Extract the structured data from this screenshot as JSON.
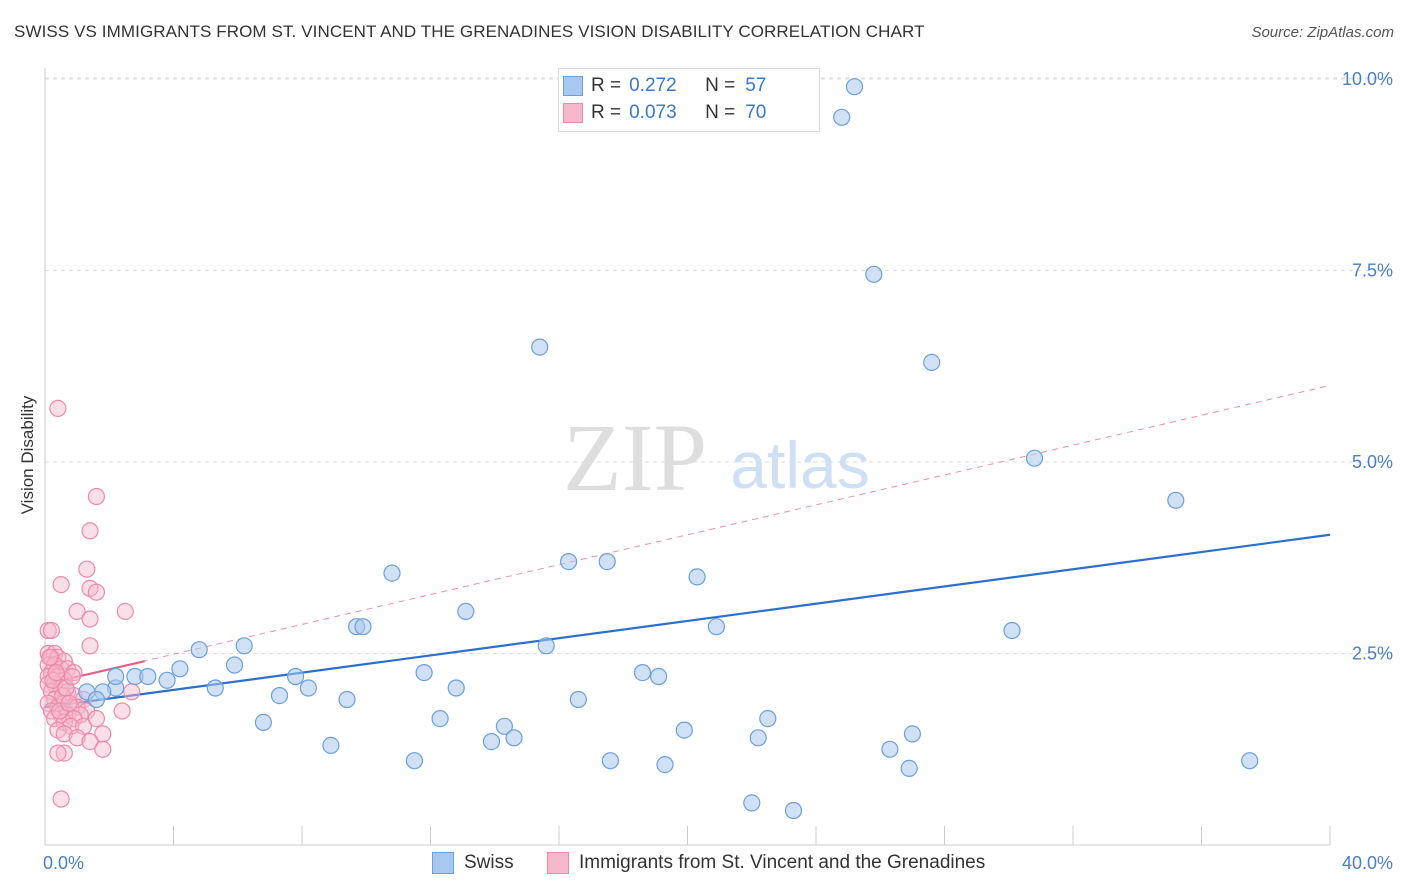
{
  "header": {
    "title": "SWISS VS IMMIGRANTS FROM ST. VINCENT AND THE GRENADINES VISION DISABILITY CORRELATION CHART",
    "source": "Source: ZipAtlas.com"
  },
  "watermark": {
    "zip": "ZIP",
    "atlas": "atlas"
  },
  "legend": {
    "swiss": {
      "r_label": "R =",
      "r_value": "0.272",
      "n_label": "N =",
      "n_value": "57"
    },
    "svg": {
      "r_label": "R =",
      "r_value": "0.073",
      "n_label": "N =",
      "n_value": "70"
    }
  },
  "bottom_legend": {
    "swiss": "Swiss",
    "svg": "Immigrants from St. Vincent and the Grenadines"
  },
  "colors": {
    "swiss_fill": "#a9c8ef",
    "swiss_stroke": "#6c9fdc",
    "swiss_line": "#2c6fcc",
    "svg_fill": "#f7b7cb",
    "svg_stroke": "#ec8aaa",
    "svg_line": "#e8608a",
    "grid": "#dddddd",
    "tick_text": "#4a7fc9"
  },
  "chart_data": {
    "type": "scatter",
    "title": "SWISS VS IMMIGRANTS FROM ST. VINCENT AND THE GRENADINES VISION DISABILITY CORRELATION CHART",
    "xlabel": "",
    "ylabel": "Vision Disability",
    "xlim": [
      0,
      40
    ],
    "ylim": [
      0,
      10.5
    ],
    "x_tick_labels": [
      "0.0%",
      "40.0%"
    ],
    "y_ticks": [
      2.5,
      5.0,
      7.5,
      10.0
    ],
    "y_tick_labels": [
      "2.5%",
      "5.0%",
      "7.5%",
      "10.0%"
    ],
    "grid": "horizontal dashed",
    "legend_position": "top-center",
    "series": [
      {
        "name": "Swiss",
        "points": [
          [
            25.2,
            9.9
          ],
          [
            24.8,
            9.5
          ],
          [
            25.8,
            7.45
          ],
          [
            15.4,
            6.5
          ],
          [
            27.6,
            6.3
          ],
          [
            30.8,
            5.05
          ],
          [
            35.2,
            4.5
          ],
          [
            16.3,
            3.7
          ],
          [
            17.5,
            3.7
          ],
          [
            20.3,
            3.5
          ],
          [
            10.8,
            3.55
          ],
          [
            13.1,
            3.05
          ],
          [
            9.7,
            2.85
          ],
          [
            9.9,
            2.85
          ],
          [
            20.9,
            2.85
          ],
          [
            30.1,
            2.8
          ],
          [
            15.6,
            2.6
          ],
          [
            6.2,
            2.6
          ],
          [
            4.8,
            2.55
          ],
          [
            5.9,
            2.35
          ],
          [
            4.2,
            2.3
          ],
          [
            11.8,
            2.25
          ],
          [
            18.6,
            2.25
          ],
          [
            19.1,
            2.2
          ],
          [
            7.8,
            2.2
          ],
          [
            2.8,
            2.2
          ],
          [
            3.2,
            2.2
          ],
          [
            3.8,
            2.15
          ],
          [
            2.2,
            2.05
          ],
          [
            1.3,
            2.0
          ],
          [
            1.8,
            2.0
          ],
          [
            5.3,
            2.05
          ],
          [
            8.2,
            2.05
          ],
          [
            12.8,
            2.05
          ],
          [
            7.3,
            1.95
          ],
          [
            9.4,
            1.9
          ],
          [
            16.6,
            1.9
          ],
          [
            12.3,
            1.65
          ],
          [
            22.5,
            1.65
          ],
          [
            6.8,
            1.6
          ],
          [
            14.3,
            1.55
          ],
          [
            19.9,
            1.5
          ],
          [
            13.9,
            1.35
          ],
          [
            14.6,
            1.4
          ],
          [
            22.2,
            1.4
          ],
          [
            27.0,
            1.45
          ],
          [
            8.9,
            1.3
          ],
          [
            26.3,
            1.25
          ],
          [
            11.5,
            1.1
          ],
          [
            17.6,
            1.1
          ],
          [
            19.3,
            1.05
          ],
          [
            26.9,
            1.0
          ],
          [
            37.5,
            1.1
          ],
          [
            22.0,
            0.55
          ],
          [
            23.3,
            0.45
          ],
          [
            2.2,
            2.2
          ],
          [
            1.6,
            1.9
          ]
        ]
      },
      {
        "name": "Immigrants from St. Vincent and the Grenadines",
        "points": [
          [
            0.4,
            5.7
          ],
          [
            1.6,
            4.55
          ],
          [
            1.4,
            4.1
          ],
          [
            1.3,
            3.6
          ],
          [
            0.5,
            3.4
          ],
          [
            1.4,
            3.35
          ],
          [
            1.6,
            3.3
          ],
          [
            1.0,
            3.05
          ],
          [
            2.5,
            3.05
          ],
          [
            1.4,
            2.95
          ],
          [
            0.1,
            2.8
          ],
          [
            0.2,
            2.8
          ],
          [
            1.4,
            2.6
          ],
          [
            0.1,
            2.5
          ],
          [
            0.3,
            2.5
          ],
          [
            0.2,
            2.45
          ],
          [
            0.4,
            2.45
          ],
          [
            0.6,
            2.4
          ],
          [
            0.1,
            2.35
          ],
          [
            0.3,
            2.35
          ],
          [
            0.5,
            2.3
          ],
          [
            0.7,
            2.3
          ],
          [
            0.9,
            2.25
          ],
          [
            0.2,
            2.25
          ],
          [
            0.1,
            2.2
          ],
          [
            0.4,
            2.2
          ],
          [
            0.6,
            2.15
          ],
          [
            0.3,
            2.1
          ],
          [
            0.1,
            2.1
          ],
          [
            0.5,
            2.05
          ],
          [
            0.2,
            2.0
          ],
          [
            0.7,
            2.0
          ],
          [
            0.9,
            1.95
          ],
          [
            1.2,
            1.9
          ],
          [
            2.7,
            2.0
          ],
          [
            0.3,
            1.9
          ],
          [
            0.6,
            1.85
          ],
          [
            0.1,
            1.85
          ],
          [
            0.4,
            1.8
          ],
          [
            0.8,
            1.8
          ],
          [
            1.0,
            1.8
          ],
          [
            1.3,
            1.75
          ],
          [
            0.2,
            1.75
          ],
          [
            0.5,
            1.7
          ],
          [
            0.7,
            1.7
          ],
          [
            1.1,
            1.7
          ],
          [
            2.4,
            1.75
          ],
          [
            0.3,
            1.65
          ],
          [
            0.9,
            1.65
          ],
          [
            1.6,
            1.65
          ],
          [
            0.6,
            1.6
          ],
          [
            0.8,
            1.55
          ],
          [
            1.2,
            1.55
          ],
          [
            0.4,
            1.5
          ],
          [
            0.6,
            1.45
          ],
          [
            1.8,
            1.45
          ],
          [
            1.0,
            1.4
          ],
          [
            1.4,
            1.35
          ],
          [
            1.8,
            1.25
          ],
          [
            0.6,
            1.2
          ],
          [
            0.4,
            1.2
          ],
          [
            0.5,
            0.6
          ],
          [
            0.15,
            2.45
          ],
          [
            0.25,
            2.15
          ],
          [
            0.35,
            2.25
          ],
          [
            0.55,
            1.95
          ],
          [
            0.45,
            1.75
          ],
          [
            0.65,
            2.05
          ],
          [
            0.75,
            1.85
          ],
          [
            0.85,
            2.2
          ]
        ]
      }
    ],
    "trendlines": [
      {
        "series": "Swiss",
        "style": "solid",
        "x": [
          0,
          40
        ],
        "y": [
          1.8,
          4.05
        ]
      },
      {
        "series": "Immigrants from St. Vincent and the Grenadines",
        "style": "solid",
        "x": [
          0,
          3.1
        ],
        "y": [
          2.1,
          2.4
        ]
      },
      {
        "series": "Immigrants from St. Vincent and the Grenadines",
        "style": "dashed",
        "x": [
          0,
          40
        ],
        "y": [
          2.1,
          6.0
        ]
      }
    ]
  }
}
